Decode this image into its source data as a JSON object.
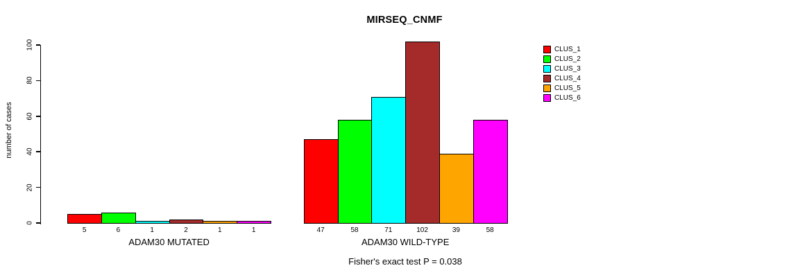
{
  "chart_data": {
    "type": "bar",
    "title": "MIRSEQ_CNMF",
    "ylabel": "number of cases",
    "xlabel": "",
    "ylim": [
      0,
      100
    ],
    "yticks": [
      0,
      20,
      40,
      60,
      80,
      100
    ],
    "grid": false,
    "legend_position": "right",
    "legend": [
      {
        "label": "CLUS_1",
        "color": "#FF0000"
      },
      {
        "label": "CLUS_2",
        "color": "#00FF00"
      },
      {
        "label": "CLUS_3",
        "color": "#00FFFF"
      },
      {
        "label": "CLUS_4",
        "color": "#A52A2A"
      },
      {
        "label": "CLUS_5",
        "color": "#FFA500"
      },
      {
        "label": "CLUS_6",
        "color": "#FF00FF"
      }
    ],
    "groups": [
      {
        "label": "ADAM30 MUTATED",
        "values": [
          5,
          6,
          1,
          2,
          1,
          1
        ]
      },
      {
        "label": "ADAM30 WILD-TYPE",
        "values": [
          47,
          58,
          71,
          102,
          39,
          58
        ]
      }
    ],
    "annotation": "Fisher's exact test P = 0.038",
    "colors": {
      "background": "#FFFFFF",
      "axis": "#000000",
      "text": "#000000"
    }
  }
}
